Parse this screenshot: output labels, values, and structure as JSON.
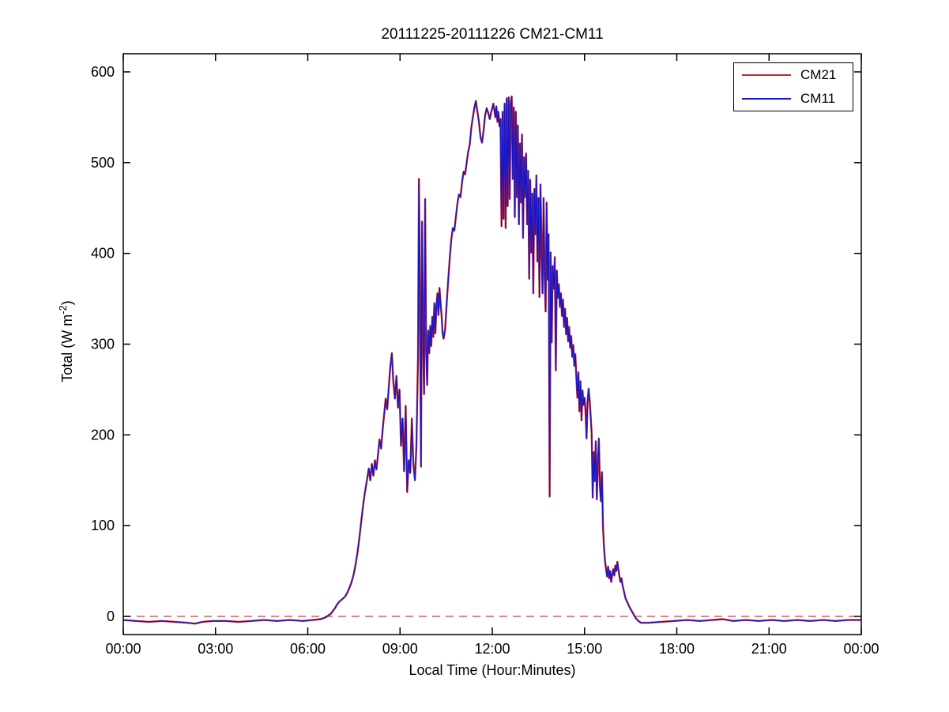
{
  "window": {
    "background": "#ffffff"
  },
  "chart_data": {
    "type": "line",
    "title": "20111225-20111226 CM21-CM11",
    "xlabel": "Local Time (Hour:Minutes)",
    "ylabel": "Total (W m⁻²)",
    "ylabel_parts": {
      "prefix": "Total (W m",
      "sup": "-2",
      "suffix": ")"
    },
    "legend_position": "top-right",
    "grid": false,
    "x_axis": {
      "label": "Local Time (Hour:Minutes)",
      "range_minutes": [
        0,
        1440
      ],
      "ticks": [
        {
          "minutes": 0,
          "label": "00:00"
        },
        {
          "minutes": 180,
          "label": "03:00"
        },
        {
          "minutes": 360,
          "label": "06:00"
        },
        {
          "minutes": 540,
          "label": "09:00"
        },
        {
          "minutes": 720,
          "label": "12:00"
        },
        {
          "minutes": 900,
          "label": "15:00"
        },
        {
          "minutes": 1080,
          "label": "18:00"
        },
        {
          "minutes": 1260,
          "label": "21:00"
        },
        {
          "minutes": 1440,
          "label": "00:00"
        }
      ]
    },
    "y_axis": {
      "label": "Total (W m⁻²)",
      "range": [
        -20,
        620
      ],
      "ticks": [
        0,
        100,
        200,
        300,
        400,
        500,
        600
      ]
    },
    "zero_line": {
      "value": 0,
      "color": "#C84040",
      "style": "dashed"
    },
    "axis_color": "#000000",
    "series": [
      {
        "name": "CM21",
        "color": "#C62828",
        "stroke_width": 2.4,
        "points": "shared"
      },
      {
        "name": "CM11",
        "color": "#1616C8",
        "stroke_width": 1.3,
        "points": "shared"
      }
    ],
    "series_note": "CM21 (red) and CM11 (blue) pyranometer traces overlap almost exactly; values below are a sampled common trace [minutes, W m-2].",
    "points": [
      [
        0,
        -4
      ],
      [
        25,
        -5
      ],
      [
        50,
        -6
      ],
      [
        75,
        -5
      ],
      [
        100,
        -6
      ],
      [
        125,
        -7
      ],
      [
        140,
        -8
      ],
      [
        155,
        -6
      ],
      [
        175,
        -5
      ],
      [
        200,
        -5
      ],
      [
        225,
        -6
      ],
      [
        250,
        -5
      ],
      [
        275,
        -4
      ],
      [
        300,
        -5
      ],
      [
        325,
        -4
      ],
      [
        350,
        -5
      ],
      [
        370,
        -4
      ],
      [
        385,
        -3
      ],
      [
        395,
        -1
      ],
      [
        400,
        1
      ],
      [
        405,
        3
      ],
      [
        409,
        6
      ],
      [
        413,
        9
      ],
      [
        417,
        13
      ],
      [
        421,
        16
      ],
      [
        425,
        18
      ],
      [
        429,
        20
      ],
      [
        433,
        22
      ],
      [
        437,
        26
      ],
      [
        441,
        31
      ],
      [
        445,
        37
      ],
      [
        449,
        45
      ],
      [
        453,
        56
      ],
      [
        457,
        70
      ],
      [
        461,
        88
      ],
      [
        465,
        108
      ],
      [
        469,
        127
      ],
      [
        473,
        142
      ],
      [
        476,
        152
      ],
      [
        479,
        163
      ],
      [
        482,
        150
      ],
      [
        485,
        168
      ],
      [
        488,
        155
      ],
      [
        491,
        172
      ],
      [
        494,
        162
      ],
      [
        497,
        178
      ],
      [
        500,
        195
      ],
      [
        503,
        185
      ],
      [
        506,
        205
      ],
      [
        509,
        222
      ],
      [
        512,
        240
      ],
      [
        515,
        228
      ],
      [
        518,
        252
      ],
      [
        521,
        275
      ],
      [
        524,
        290
      ],
      [
        527,
        258
      ],
      [
        530,
        240
      ],
      [
        533,
        265
      ],
      [
        536,
        230
      ],
      [
        539,
        250
      ],
      [
        542,
        188
      ],
      [
        545,
        218
      ],
      [
        548,
        160
      ],
      [
        551,
        232
      ],
      [
        554,
        137
      ],
      [
        557,
        172
      ],
      [
        560,
        158
      ],
      [
        563,
        218
      ],
      [
        566,
        168
      ],
      [
        569,
        150
      ],
      [
        572,
        188
      ],
      [
        575,
        285
      ],
      [
        577,
        482
      ],
      [
        579,
        345
      ],
      [
        581,
        165
      ],
      [
        583,
        435
      ],
      [
        585,
        305
      ],
      [
        587,
        245
      ],
      [
        589,
        460
      ],
      [
        591,
        295
      ],
      [
        593,
        255
      ],
      [
        595,
        315
      ],
      [
        597,
        290
      ],
      [
        599,
        320
      ],
      [
        601,
        298
      ],
      [
        603,
        330
      ],
      [
        605,
        308
      ],
      [
        607,
        345
      ],
      [
        609,
        312
      ],
      [
        611,
        342
      ],
      [
        613,
        356
      ],
      [
        615,
        332
      ],
      [
        617,
        362
      ],
      [
        619,
        346
      ],
      [
        621,
        332
      ],
      [
        623,
        312
      ],
      [
        625,
        306
      ],
      [
        628,
        316
      ],
      [
        631,
        345
      ],
      [
        634,
        370
      ],
      [
        637,
        395
      ],
      [
        640,
        415
      ],
      [
        643,
        428
      ],
      [
        646,
        425
      ],
      [
        649,
        440
      ],
      [
        652,
        455
      ],
      [
        655,
        465
      ],
      [
        658,
        462
      ],
      [
        661,
        478
      ],
      [
        664,
        490
      ],
      [
        667,
        487
      ],
      [
        670,
        500
      ],
      [
        673,
        512
      ],
      [
        676,
        520
      ],
      [
        679,
        538
      ],
      [
        682,
        550
      ],
      [
        685,
        560
      ],
      [
        688,
        568
      ],
      [
        691,
        556
      ],
      [
        694,
        545
      ],
      [
        697,
        528
      ],
      [
        700,
        522
      ],
      [
        703,
        535
      ],
      [
        706,
        552
      ],
      [
        709,
        560
      ],
      [
        712,
        555
      ],
      [
        715,
        548
      ],
      [
        718,
        556
      ],
      [
        720,
        560
      ],
      [
        722,
        565
      ],
      [
        724,
        558
      ],
      [
        726,
        550
      ],
      [
        728,
        562
      ],
      [
        730,
        545
      ],
      [
        732,
        556
      ],
      [
        734,
        540
      ],
      [
        736,
        548
      ],
      [
        738,
        430
      ],
      [
        740,
        556
      ],
      [
        742,
        438
      ],
      [
        744,
        565
      ],
      [
        746,
        428
      ],
      [
        748,
        571
      ],
      [
        750,
        452
      ],
      [
        752,
        572
      ],
      [
        754,
        460
      ],
      [
        756,
        566
      ],
      [
        758,
        573
      ],
      [
        760,
        482
      ],
      [
        762,
        561
      ],
      [
        764,
        440
      ],
      [
        766,
        556
      ],
      [
        768,
        462
      ],
      [
        770,
        541
      ],
      [
        772,
        432
      ],
      [
        774,
        521
      ],
      [
        776,
        456
      ],
      [
        778,
        531
      ],
      [
        780,
        417
      ],
      [
        782,
        506
      ],
      [
        784,
        462
      ],
      [
        786,
        510
      ],
      [
        788,
        432
      ],
      [
        790,
        491
      ],
      [
        792,
        372
      ],
      [
        794,
        481
      ],
      [
        796,
        401
      ],
      [
        798,
        466
      ],
      [
        800,
        356
      ],
      [
        802,
        471
      ],
      [
        804,
        421
      ],
      [
        806,
        486
      ],
      [
        808,
        391
      ],
      [
        810,
        461
      ],
      [
        812,
        352
      ],
      [
        814,
        476
      ],
      [
        816,
        406
      ],
      [
        818,
        356
      ],
      [
        820,
        461
      ],
      [
        822,
        381
      ],
      [
        824,
        336
      ],
      [
        826,
        456
      ],
      [
        828,
        371
      ],
      [
        830,
        421
      ],
      [
        832,
        132
      ],
      [
        834,
        401
      ],
      [
        836,
        302
      ],
      [
        838,
        386
      ],
      [
        840,
        361
      ],
      [
        842,
        396
      ],
      [
        844,
        271
      ],
      [
        846,
        381
      ],
      [
        848,
        351
      ],
      [
        850,
        366
      ],
      [
        852,
        341
      ],
      [
        854,
        356
      ],
      [
        856,
        331
      ],
      [
        858,
        349
      ],
      [
        860,
        319
      ],
      [
        862,
        339
      ],
      [
        864,
        311
      ],
      [
        866,
        329
      ],
      [
        868,
        303
      ],
      [
        870,
        319
      ],
      [
        872,
        296
      ],
      [
        874,
        309
      ],
      [
        876,
        286
      ],
      [
        878,
        299
      ],
      [
        880,
        276
      ],
      [
        882,
        289
      ],
      [
        884,
        263
      ],
      [
        886,
        241
      ],
      [
        888,
        269
      ],
      [
        890,
        226
      ],
      [
        892,
        259
      ],
      [
        894,
        216
      ],
      [
        896,
        249
      ],
      [
        898,
        233
      ],
      [
        900,
        241
      ],
      [
        902,
        226
      ],
      [
        904,
        196
      ],
      [
        906,
        236
      ],
      [
        908,
        251
      ],
      [
        910,
        239
      ],
      [
        912,
        221
      ],
      [
        914,
        201
      ],
      [
        916,
        131
      ],
      [
        918,
        181
      ],
      [
        920,
        149
      ],
      [
        922,
        193
      ],
      [
        924,
        129
      ],
      [
        926,
        166
      ],
      [
        928,
        196
      ],
      [
        930,
        143
      ],
      [
        932,
        127
      ],
      [
        934,
        159
      ],
      [
        936,
        99
      ],
      [
        938,
        76
      ],
      [
        940,
        61
      ],
      [
        942,
        52
      ],
      [
        944,
        44
      ],
      [
        946,
        55
      ],
      [
        948,
        42
      ],
      [
        950,
        50
      ],
      [
        952,
        38
      ],
      [
        954,
        46
      ],
      [
        956,
        52
      ],
      [
        958,
        45
      ],
      [
        960,
        56
      ],
      [
        962,
        50
      ],
      [
        964,
        60
      ],
      [
        966,
        52
      ],
      [
        968,
        44
      ],
      [
        970,
        38
      ],
      [
        972,
        42
      ],
      [
        974,
        35
      ],
      [
        976,
        30
      ],
      [
        978,
        25
      ],
      [
        980,
        20
      ],
      [
        984,
        15
      ],
      [
        988,
        10
      ],
      [
        992,
        6
      ],
      [
        996,
        2
      ],
      [
        1000,
        -2
      ],
      [
        1005,
        -5
      ],
      [
        1010,
        -7
      ],
      [
        1025,
        -7
      ],
      [
        1050,
        -6
      ],
      [
        1075,
        -5
      ],
      [
        1100,
        -4
      ],
      [
        1125,
        -5
      ],
      [
        1150,
        -4
      ],
      [
        1170,
        -3
      ],
      [
        1190,
        -5
      ],
      [
        1215,
        -4
      ],
      [
        1240,
        -5
      ],
      [
        1265,
        -4
      ],
      [
        1290,
        -5
      ],
      [
        1315,
        -4
      ],
      [
        1340,
        -5
      ],
      [
        1365,
        -4
      ],
      [
        1390,
        -5
      ],
      [
        1415,
        -4
      ],
      [
        1440,
        -4
      ]
    ]
  }
}
